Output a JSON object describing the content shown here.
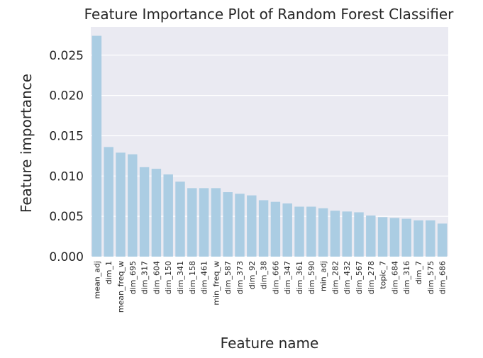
{
  "chart_data": {
    "type": "bar",
    "title": "Feature Importance Plot of Random Forest Classifier",
    "xlabel": "Feature name",
    "ylabel": "Feature importance",
    "ylim": [
      0,
      0.0285
    ],
    "yticks": [
      "0.000",
      "0.005",
      "0.010",
      "0.015",
      "0.020",
      "0.025"
    ],
    "grid": true,
    "bar_color": "#abcde3",
    "background_color": "#eaeaf2",
    "categories": [
      "mean_adj",
      "dim_1",
      "mean_freq_w",
      "dim_695",
      "dim_317",
      "dim_604",
      "dim_150",
      "dim_341",
      "dim_158",
      "dim_461",
      "min_freq_w",
      "dim_587",
      "dim_373",
      "dim_92",
      "dim_38",
      "dim_666",
      "dim_347",
      "dim_361",
      "dim_590",
      "min_adj",
      "dim_282",
      "dim_432",
      "dim_567",
      "dim_278",
      "topic_7",
      "dim_684",
      "dim_316",
      "dim_7",
      "dim_575",
      "dim_686"
    ],
    "values": [
      0.0274,
      0.0136,
      0.0129,
      0.0127,
      0.0111,
      0.0109,
      0.0102,
      0.0093,
      0.0085,
      0.0085,
      0.0085,
      0.008,
      0.0078,
      0.0076,
      0.007,
      0.0068,
      0.0066,
      0.0062,
      0.0062,
      0.006,
      0.0057,
      0.0056,
      0.0055,
      0.0051,
      0.0049,
      0.0048,
      0.0047,
      0.0045,
      0.0045,
      0.0041
    ]
  }
}
